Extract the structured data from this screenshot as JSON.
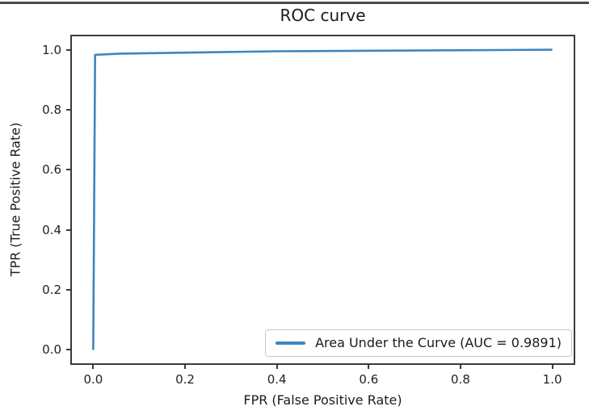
{
  "chart_data": {
    "type": "line",
    "title": "ROC curve",
    "xlabel": "FPR (False Positive Rate)",
    "ylabel": "TPR (True Positive Rate)",
    "xlim": [
      -0.05,
      1.05
    ],
    "ylim": [
      -0.05,
      1.05
    ],
    "xtick_values": [
      0.0,
      0.2,
      0.4,
      0.6,
      0.8,
      1.0
    ],
    "xtick_labels": [
      "0.0",
      "0.2",
      "0.4",
      "0.6",
      "0.8",
      "1.0"
    ],
    "ytick_values": [
      0.0,
      0.2,
      0.4,
      0.6,
      0.8,
      1.0
    ],
    "ytick_labels": [
      "0.0",
      "0.2",
      "0.4",
      "0.6",
      "0.8",
      "1.0"
    ],
    "grid": false,
    "auc": "0.9891",
    "legend": {
      "position": "lower right",
      "label": "Area Under the Curve (AUC = 0.9891)"
    },
    "series": [
      {
        "name": "Area Under the Curve (AUC = 0.9891)",
        "color": "#3d85c0",
        "line_width": 2.6,
        "points": [
          [
            0.0,
            0.0
          ],
          [
            0.004,
            0.983
          ],
          [
            0.06,
            0.987
          ],
          [
            0.4,
            0.995
          ],
          [
            1.0,
            1.0
          ]
        ]
      }
    ]
  },
  "colors": {
    "background": "#ffffff",
    "top_rule": "#4b4b4b",
    "spine": "#3a3a3a",
    "text": "#1b1b1b",
    "tick_text": "#222222",
    "legend_border": "#c9c9c9"
  }
}
